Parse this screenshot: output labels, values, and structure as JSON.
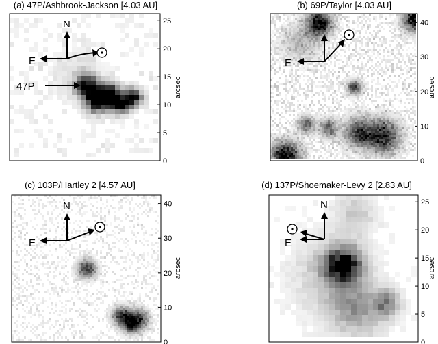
{
  "panels": [
    {
      "title": "(a) 47P/Ashbrook-Jackson [4.03 AU]",
      "ylabel": "arcsec",
      "ticks": [
        "0",
        "5",
        "10",
        "15",
        "20",
        "25"
      ],
      "north": "N",
      "east": "E",
      "object_label": "47P"
    },
    {
      "title": "(b) 69P/Taylor [4.03 AU]",
      "ylabel": "arcsec",
      "ticks": [
        "0",
        "10",
        "20",
        "30",
        "40"
      ],
      "north": "N",
      "east": "E"
    },
    {
      "title": "(c) 103P/Hartley 2 [4.57 AU]",
      "ylabel": "arcsec",
      "ticks": [
        "0",
        "10",
        "20",
        "30",
        "40"
      ],
      "north": "N",
      "east": "E"
    },
    {
      "title": "(d) 137P/Shoemaker-Levy 2 [2.83 AU]",
      "ylabel": "arcsec",
      "ticks": [
        "0",
        "5",
        "10",
        "15",
        "20",
        "25"
      ],
      "north": "N",
      "east": "E"
    }
  ],
  "colors": {
    "background": "#ffffff",
    "frame": "#000000",
    "image_gray": "#7a7a7a"
  }
}
